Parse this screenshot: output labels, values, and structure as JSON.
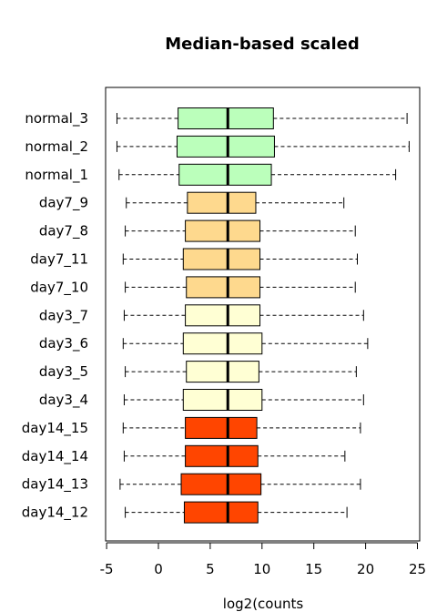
{
  "chart_data": {
    "type": "boxplot",
    "orientation": "horizontal",
    "title": "Median-based scaled",
    "xlabel": "log2(counts",
    "ylabel": "",
    "xlim": [
      -5,
      25
    ],
    "xticks": [
      -5,
      0,
      5,
      10,
      15,
      20,
      25
    ],
    "xtick_labels": [
      "-5",
      "0",
      "5",
      "10",
      "15",
      "20",
      "25"
    ],
    "colors": {
      "normal": "#bbffbb",
      "day7": "#fed98e",
      "day3": "#ffffd4",
      "day14": "#ff4500"
    },
    "series": [
      {
        "name": "normal_3",
        "group": "normal",
        "whisker_low": -4.0,
        "q1": 1.9,
        "median": 6.7,
        "q3": 11.1,
        "whisker_high": 24.0
      },
      {
        "name": "normal_2",
        "group": "normal",
        "whisker_low": -4.0,
        "q1": 1.8,
        "median": 6.7,
        "q3": 11.2,
        "whisker_high": 24.2
      },
      {
        "name": "normal_1",
        "group": "normal",
        "whisker_low": -3.8,
        "q1": 2.0,
        "median": 6.7,
        "q3": 10.9,
        "whisker_high": 22.9
      },
      {
        "name": "day7_9",
        "group": "day7",
        "whisker_low": -3.1,
        "q1": 2.8,
        "median": 6.7,
        "q3": 9.4,
        "whisker_high": 17.9
      },
      {
        "name": "day7_8",
        "group": "day7",
        "whisker_low": -3.2,
        "q1": 2.6,
        "median": 6.7,
        "q3": 9.8,
        "whisker_high": 19.0
      },
      {
        "name": "day7_11",
        "group": "day7",
        "whisker_low": -3.4,
        "q1": 2.4,
        "median": 6.7,
        "q3": 9.8,
        "whisker_high": 19.2
      },
      {
        "name": "day7_10",
        "group": "day7",
        "whisker_low": -3.2,
        "q1": 2.7,
        "median": 6.7,
        "q3": 9.8,
        "whisker_high": 19.0
      },
      {
        "name": "day3_7",
        "group": "day3",
        "whisker_low": -3.3,
        "q1": 2.6,
        "median": 6.7,
        "q3": 9.8,
        "whisker_high": 19.8
      },
      {
        "name": "day3_6",
        "group": "day3",
        "whisker_low": -3.4,
        "q1": 2.4,
        "median": 6.7,
        "q3": 10.0,
        "whisker_high": 20.2
      },
      {
        "name": "day3_5",
        "group": "day3",
        "whisker_low": -3.2,
        "q1": 2.7,
        "median": 6.7,
        "q3": 9.7,
        "whisker_high": 19.1
      },
      {
        "name": "day3_4",
        "group": "day3",
        "whisker_low": -3.3,
        "q1": 2.4,
        "median": 6.7,
        "q3": 10.0,
        "whisker_high": 19.8
      },
      {
        "name": "day14_15",
        "group": "day14",
        "whisker_low": -3.4,
        "q1": 2.6,
        "median": 6.7,
        "q3": 9.5,
        "whisker_high": 19.5
      },
      {
        "name": "day14_14",
        "group": "day14",
        "whisker_low": -3.3,
        "q1": 2.6,
        "median": 6.7,
        "q3": 9.6,
        "whisker_high": 18.0
      },
      {
        "name": "day14_13",
        "group": "day14",
        "whisker_low": -3.7,
        "q1": 2.2,
        "median": 6.7,
        "q3": 9.9,
        "whisker_high": 19.5
      },
      {
        "name": "day14_12",
        "group": "day14",
        "whisker_low": -3.2,
        "q1": 2.5,
        "median": 6.7,
        "q3": 9.6,
        "whisker_high": 18.2
      }
    ]
  }
}
